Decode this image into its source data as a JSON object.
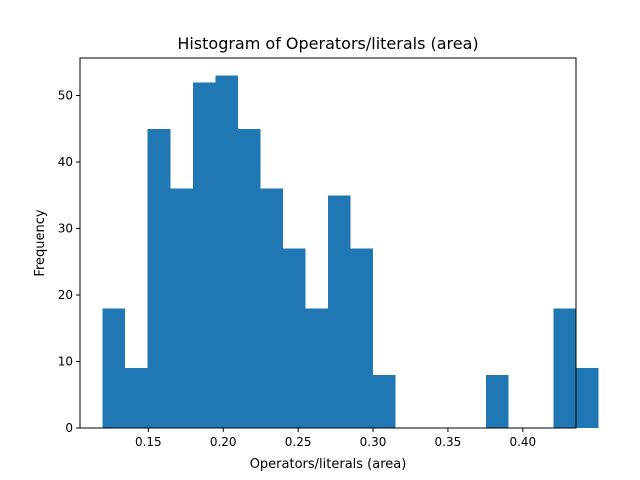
{
  "chart_data": {
    "type": "bar",
    "title": "Histogram of Operators/literals (area)",
    "xlabel": "Operators/literals (area)",
    "ylabel": "Frequency",
    "bin_start": 0.1195,
    "bin_width": 0.01505,
    "values": [
      18,
      9,
      45,
      36,
      52,
      53,
      45,
      36,
      27,
      18,
      35,
      27,
      8,
      0,
      0,
      0,
      0,
      8,
      0,
      0,
      18,
      9
    ],
    "xlim": [
      0.1044,
      0.4355
    ],
    "ylim": [
      0,
      55.65
    ],
    "xticks": [
      {
        "value": 0.15,
        "label": "0.15"
      },
      {
        "value": 0.2,
        "label": "0.20"
      },
      {
        "value": 0.25,
        "label": "0.25"
      },
      {
        "value": 0.3,
        "label": "0.30"
      },
      {
        "value": 0.35,
        "label": "0.35"
      },
      {
        "value": 0.4,
        "label": "0.40"
      }
    ],
    "yticks": [
      {
        "value": 0,
        "label": "0"
      },
      {
        "value": 10,
        "label": "10"
      },
      {
        "value": 20,
        "label": "20"
      },
      {
        "value": 30,
        "label": "30"
      },
      {
        "value": 40,
        "label": "40"
      },
      {
        "value": 50,
        "label": "50"
      }
    ],
    "bar_color": "#1f77b4",
    "grid": false,
    "legend": "none"
  }
}
